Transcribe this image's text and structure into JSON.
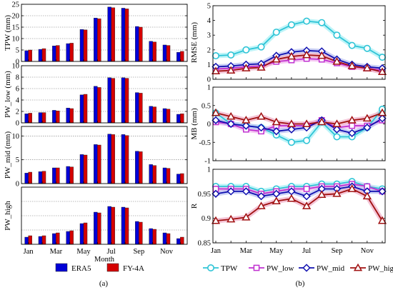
{
  "figure": {
    "left_label": "(a)",
    "right_label": "(b)"
  },
  "chart_data": [
    {
      "id": "a1",
      "type": "bar",
      "panel": "a",
      "ylabel": "TPW (mm)",
      "ylim": [
        0,
        25
      ],
      "yticks": [
        0,
        5,
        10,
        15,
        20,
        25
      ],
      "grid": true,
      "categories": [
        "Jan",
        "Feb",
        "Mar",
        "Apr",
        "May",
        "Jun",
        "Jul",
        "Aug",
        "Sep",
        "Oct",
        "Nov",
        "Dec"
      ],
      "series": [
        {
          "name": "ERA5",
          "color": "#0000d6",
          "values": [
            4.7,
            5.3,
            6.8,
            7.8,
            14.0,
            19.0,
            23.8,
            23.3,
            15.3,
            8.8,
            7.2,
            4.0
          ]
        },
        {
          "name": "FY-4A",
          "color": "#d40000",
          "values": [
            5.0,
            5.6,
            7.0,
            8.0,
            13.8,
            18.7,
            23.5,
            23.0,
            15.0,
            8.5,
            7.0,
            4.4
          ]
        }
      ]
    },
    {
      "id": "a2",
      "type": "bar",
      "panel": "a",
      "ylabel": "PW_low (mm)",
      "ylim": [
        0,
        10
      ],
      "yticks": [
        0,
        2,
        4,
        6,
        8,
        10
      ],
      "grid": true,
      "categories": [
        "Jan",
        "Feb",
        "Mar",
        "Apr",
        "May",
        "Jun",
        "Jul",
        "Aug",
        "Sep",
        "Oct",
        "Nov",
        "Dec"
      ],
      "series": [
        {
          "name": "ERA5",
          "color": "#0000d6",
          "values": [
            1.6,
            1.8,
            2.2,
            2.6,
            4.9,
            6.4,
            7.9,
            7.9,
            5.3,
            2.9,
            2.5,
            1.5
          ]
        },
        {
          "name": "FY-4A",
          "color": "#d40000",
          "values": [
            1.7,
            1.8,
            2.1,
            2.5,
            5.0,
            6.2,
            7.8,
            7.8,
            5.2,
            2.8,
            2.4,
            1.6
          ]
        }
      ]
    },
    {
      "id": "a3",
      "type": "bar",
      "panel": "a",
      "ylabel": "PW_mid (mm)",
      "ylim": [
        0,
        12
      ],
      "yticks": [
        0,
        5,
        10
      ],
      "grid": true,
      "categories": [
        "Jan",
        "Feb",
        "Mar",
        "Apr",
        "May",
        "Jun",
        "Jul",
        "Aug",
        "Sep",
        "Oct",
        "Nov",
        "Dec"
      ],
      "series": [
        {
          "name": "ERA5",
          "color": "#0000d6",
          "values": [
            2.2,
            2.5,
            3.3,
            3.6,
            6.1,
            8.2,
            10.4,
            10.3,
            6.8,
            4.0,
            3.3,
            2.0
          ]
        },
        {
          "name": "FY-4A",
          "color": "#d40000",
          "values": [
            2.4,
            2.6,
            3.3,
            3.5,
            6.0,
            8.1,
            10.3,
            10.1,
            6.7,
            3.8,
            3.2,
            2.1
          ]
        }
      ]
    },
    {
      "id": "a4",
      "type": "bar",
      "panel": "a",
      "ylabel": "PW_high",
      "ylim": [
        0,
        8
      ],
      "yticks": [],
      "grid": true,
      "xlabel": "Month",
      "xticklabels": [
        "Jan",
        "",
        "Mar",
        "",
        "May",
        "",
        "Jul",
        "",
        "Sep",
        "",
        "Nov",
        ""
      ],
      "categories": [
        "Jan",
        "Feb",
        "Mar",
        "Apr",
        "May",
        "Jun",
        "Jul",
        "Aug",
        "Sep",
        "Oct",
        "Nov",
        "Dec"
      ],
      "series": [
        {
          "name": "ERA5",
          "color": "#0000d6",
          "values": [
            1.0,
            1.1,
            1.5,
            1.8,
            2.9,
            4.5,
            5.3,
            5.2,
            3.2,
            2.2,
            1.6,
            0.8
          ]
        },
        {
          "name": "FY-4A",
          "color": "#d40000",
          "values": [
            1.2,
            1.2,
            1.6,
            1.9,
            3.0,
            4.4,
            5.2,
            5.1,
            3.1,
            2.1,
            1.5,
            1.0
          ]
        }
      ],
      "legend": {
        "position": "bottom",
        "entries": [
          "ERA5",
          "FY-4A"
        ]
      }
    },
    {
      "id": "b1",
      "type": "line",
      "panel": "b",
      "ylabel": "RMSE (mm)",
      "ylim": [
        0,
        5
      ],
      "yticks": [
        0,
        1,
        2,
        3,
        4,
        5
      ],
      "grid": false,
      "x": [
        1,
        2,
        3,
        4,
        5,
        6,
        7,
        8,
        9,
        10,
        11,
        12
      ],
      "series": [
        {
          "name": "TPW",
          "color": "#2ec4d6",
          "marker": "circle",
          "values": [
            1.6,
            1.65,
            2.0,
            2.2,
            3.2,
            3.7,
            3.95,
            3.85,
            3.0,
            2.3,
            2.1,
            1.5
          ]
        },
        {
          "name": "PW_low",
          "color": "#c030d0",
          "marker": "square",
          "values": [
            0.7,
            0.75,
            0.85,
            0.9,
            1.2,
            1.3,
            1.4,
            1.35,
            1.1,
            0.85,
            0.75,
            0.6
          ]
        },
        {
          "name": "PW_mid",
          "color": "#1010b0",
          "marker": "diamond",
          "values": [
            0.85,
            0.9,
            1.0,
            1.05,
            1.6,
            1.85,
            1.95,
            1.9,
            1.35,
            1.0,
            0.85,
            0.75
          ]
        },
        {
          "name": "PW_high",
          "color": "#a01010",
          "marker": "triangle",
          "values": [
            0.55,
            0.6,
            0.75,
            0.8,
            1.35,
            1.55,
            1.65,
            1.6,
            1.2,
            0.9,
            0.75,
            0.5
          ]
        }
      ]
    },
    {
      "id": "b2",
      "type": "line",
      "panel": "b",
      "ylabel": "MB (mm)",
      "ylim": [
        -1,
        1
      ],
      "yticks": [
        -1,
        -0.5,
        0,
        0.5,
        1
      ],
      "grid": false,
      "x": [
        1,
        2,
        3,
        4,
        5,
        6,
        7,
        8,
        9,
        10,
        11,
        12
      ],
      "series": [
        {
          "name": "TPW",
          "color": "#2ec4d6",
          "marker": "circle",
          "values": [
            0.3,
            0.0,
            -0.05,
            -0.1,
            -0.3,
            -0.5,
            -0.45,
            0.05,
            -0.35,
            -0.35,
            -0.1,
            0.4
          ]
        },
        {
          "name": "PW_low",
          "color": "#c030d0",
          "marker": "square",
          "values": [
            0.05,
            0.0,
            -0.15,
            -0.2,
            -0.05,
            -0.05,
            -0.05,
            0.1,
            -0.1,
            -0.05,
            -0.05,
            0.1
          ]
        },
        {
          "name": "PW_mid",
          "color": "#1010b0",
          "marker": "diamond",
          "values": [
            0.1,
            0.0,
            -0.05,
            -0.1,
            -0.2,
            -0.15,
            -0.1,
            0.1,
            -0.15,
            -0.25,
            -0.1,
            0.15
          ]
        },
        {
          "name": "PW_high",
          "color": "#a01010",
          "marker": "triangle",
          "values": [
            0.3,
            0.2,
            0.1,
            0.2,
            0.05,
            0.0,
            0.0,
            0.05,
            0.0,
            0.1,
            0.15,
            0.3
          ]
        }
      ]
    },
    {
      "id": "b3",
      "type": "line",
      "panel": "b",
      "ylabel": "R",
      "ylim": [
        0.85,
        1
      ],
      "yticks": [
        0.85,
        0.9,
        0.95,
        1
      ],
      "grid": false,
      "xticklabels": [
        "Jan",
        "",
        "Mar",
        "",
        "May",
        "",
        "Jul",
        "",
        "Sep",
        "",
        "Nov",
        ""
      ],
      "x": [
        1,
        2,
        3,
        4,
        5,
        6,
        7,
        8,
        9,
        10,
        11,
        12
      ],
      "series": [
        {
          "name": "TPW",
          "color": "#2ec4d6",
          "marker": "circle",
          "values": [
            0.965,
            0.965,
            0.965,
            0.955,
            0.96,
            0.965,
            0.965,
            0.97,
            0.97,
            0.975,
            0.965,
            0.96
          ]
        },
        {
          "name": "PW_low",
          "color": "#c030d0",
          "marker": "square",
          "values": [
            0.96,
            0.96,
            0.96,
            0.95,
            0.955,
            0.96,
            0.96,
            0.965,
            0.965,
            0.97,
            0.965,
            0.955
          ]
        },
        {
          "name": "PW_mid",
          "color": "#1010b0",
          "marker": "diamond",
          "values": [
            0.95,
            0.955,
            0.955,
            0.945,
            0.95,
            0.955,
            0.945,
            0.96,
            0.96,
            0.965,
            0.955,
            0.955
          ]
        },
        {
          "name": "PW_high",
          "color": "#a01010",
          "marker": "triangle",
          "values": [
            0.895,
            0.898,
            0.902,
            0.925,
            0.935,
            0.94,
            0.925,
            0.948,
            0.95,
            0.96,
            0.945,
            0.895
          ]
        }
      ],
      "legend": {
        "position": "bottom",
        "entries": [
          "TPW",
          "PW_low",
          "PW_mid",
          "PW_high"
        ]
      }
    }
  ]
}
